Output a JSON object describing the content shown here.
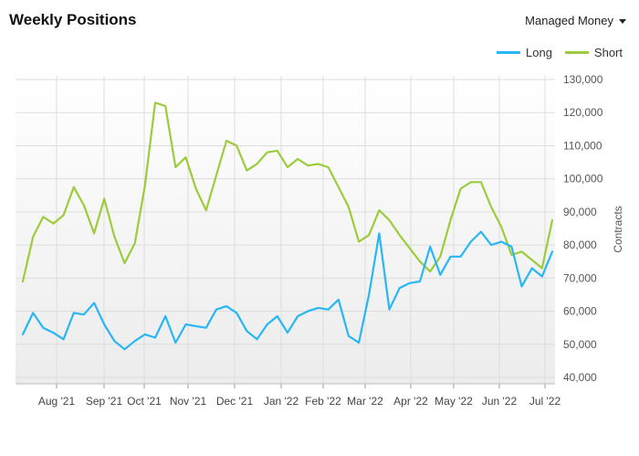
{
  "header": {
    "title": "Weekly Positions",
    "selector_label": "Managed Money"
  },
  "colors": {
    "long": "#29b6f6",
    "short": "#9ccc3c"
  },
  "chart_data": {
    "type": "line",
    "ylabel": "Contracts",
    "ylim": [
      40000,
      130000
    ],
    "y_ticks": [
      "40,000",
      "50,000",
      "60,000",
      "70,000",
      "80,000",
      "90,000",
      "100,000",
      "110,000",
      "120,000",
      "130,000"
    ],
    "x_tick_labels": [
      "Aug '21",
      "Sep '21",
      "Oct '21",
      "Nov '21",
      "Dec '21",
      "Jan '22",
      "Feb '22",
      "Mar '22",
      "Apr '22",
      "May '22",
      "Jun '22",
      "Jul '22"
    ],
    "legend_position": "top-right",
    "grid": true,
    "series": [
      {
        "name": "Long",
        "values": [
          53000,
          59500,
          55000,
          53500,
          51500,
          59500,
          59000,
          62500,
          56000,
          51000,
          48500,
          51000,
          53000,
          52000,
          58500,
          50500,
          56000,
          55500,
          55000,
          60500,
          61500,
          59500,
          54000,
          51500,
          56000,
          58500,
          53500,
          58500,
          60000,
          61000,
          60500,
          63500,
          52500,
          50500,
          65000,
          83500,
          60500,
          67000,
          68500,
          69000,
          79500,
          71000,
          76500,
          76500,
          81000,
          84000,
          80000,
          81000,
          79500,
          67500,
          73000,
          70500,
          78000
        ]
      },
      {
        "name": "Short",
        "values": [
          69000,
          82500,
          88500,
          86500,
          89000,
          97500,
          92000,
          83500,
          94000,
          82500,
          74500,
          80500,
          98000,
          123000,
          122000,
          103500,
          106500,
          97000,
          90500,
          101000,
          111500,
          110000,
          102500,
          104500,
          108000,
          108500,
          103500,
          106000,
          104000,
          104500,
          103500,
          97500,
          91500,
          81000,
          83000,
          90500,
          87500,
          83000,
          79000,
          75000,
          72000,
          76500,
          87500,
          97000,
          99000,
          99000,
          91500,
          85500,
          77000,
          78000,
          75500,
          73000,
          87500
        ]
      }
    ]
  }
}
